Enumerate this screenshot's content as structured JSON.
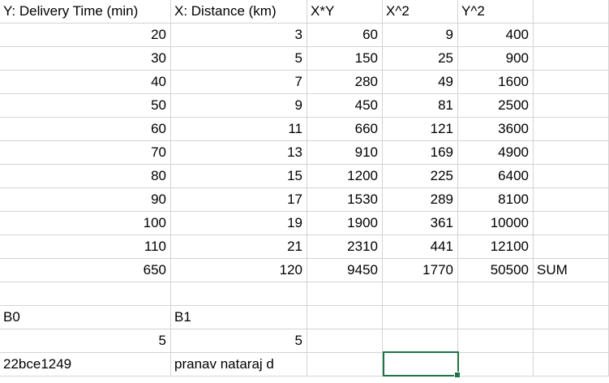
{
  "headers": {
    "y": "Y: Delivery Time (min)",
    "x": "X: Distance (km)",
    "xy": "X*Y",
    "x2": "X^2",
    "y2": "Y^2"
  },
  "rows": [
    {
      "y": "20",
      "x": "3",
      "xy": "60",
      "x2": "9",
      "y2": "400"
    },
    {
      "y": "30",
      "x": "5",
      "xy": "150",
      "x2": "25",
      "y2": "900"
    },
    {
      "y": "40",
      "x": "7",
      "xy": "280",
      "x2": "49",
      "y2": "1600"
    },
    {
      "y": "50",
      "x": "9",
      "xy": "450",
      "x2": "81",
      "y2": "2500"
    },
    {
      "y": "60",
      "x": "11",
      "xy": "660",
      "x2": "121",
      "y2": "3600"
    },
    {
      "y": "70",
      "x": "13",
      "xy": "910",
      "x2": "169",
      "y2": "4900"
    },
    {
      "y": "80",
      "x": "15",
      "xy": "1200",
      "x2": "225",
      "y2": "6400"
    },
    {
      "y": "90",
      "x": "17",
      "xy": "1530",
      "x2": "289",
      "y2": "8100"
    },
    {
      "y": "100",
      "x": "19",
      "xy": "1900",
      "x2": "361",
      "y2": "10000"
    },
    {
      "y": "110",
      "x": "21",
      "xy": "2310",
      "x2": "441",
      "y2": "12100"
    }
  ],
  "sums": {
    "y": "650",
    "x": "120",
    "xy": "9450",
    "x2": "1770",
    "y2": "50500",
    "label": "SUM"
  },
  "coefficients": {
    "b0_label": "B0",
    "b1_label": "B1",
    "b0_value": "5",
    "b1_value": "5"
  },
  "footer": {
    "id": "22bce1249",
    "name": "pranav nataraj d"
  },
  "colors": {
    "gridline": "#d4d4d4",
    "selection": "#217346"
  }
}
